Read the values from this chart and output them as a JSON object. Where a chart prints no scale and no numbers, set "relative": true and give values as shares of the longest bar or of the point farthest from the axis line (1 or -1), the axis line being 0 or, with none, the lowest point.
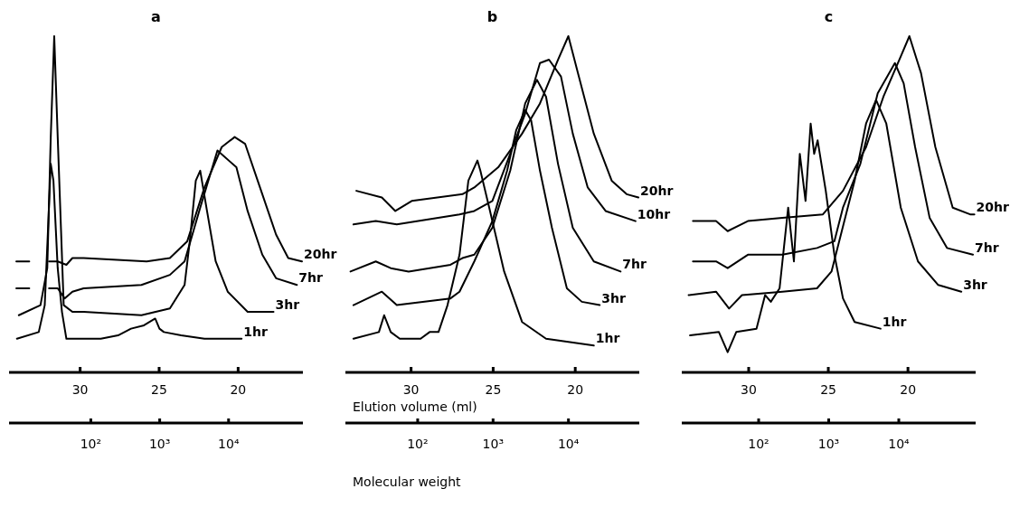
{
  "chart_data": [
    {
      "type": "line",
      "title": "a",
      "relative": true,
      "xlim": [
        34.5,
        15.9
      ],
      "xticks": [
        30,
        25,
        20
      ],
      "x2lim": [
        6.5,
        120000
      ],
      "x2ticks": [
        {
          "value": 100,
          "label": "10²"
        },
        {
          "value": 1000,
          "label": "10³"
        },
        {
          "value": 10000,
          "label": "10⁴"
        }
      ],
      "log": "x2",
      "series": [
        {
          "name": "20hr",
          "color": "#000000",
          "x": [
            34.04,
            33.22,
            32.5,
            31.97,
            31.42,
            30.87,
            30.49,
            29.78,
            25.79,
            24.32,
            23.22,
            22.13,
            21.04,
            20.22,
            19.56,
            18.47,
            17.6,
            16.83,
            15.96
          ],
          "values": [
            0.33,
            0.33,
            null,
            0.33,
            0.33,
            0.32,
            0.34,
            0.34,
            0.33,
            0.34,
            0.39,
            0.55,
            0.67,
            0.7,
            0.68,
            0.53,
            0.41,
            0.34,
            0.33
          ]
        },
        {
          "name": "7hr",
          "color": "#000000",
          "x": [
            34.04,
            33.22,
            32.5,
            31.97,
            31.42,
            30.98,
            30.49,
            29.78,
            26.12,
            24.32,
            23.39,
            22.4,
            21.31,
            20.11,
            19.4,
            18.47,
            17.6,
            16.28
          ],
          "values": [
            0.25,
            0.25,
            null,
            0.25,
            0.25,
            0.22,
            0.24,
            0.25,
            0.26,
            0.29,
            0.33,
            0.49,
            0.66,
            0.61,
            0.48,
            0.35,
            0.28,
            0.26
          ]
        },
        {
          "name": "3hr",
          "color": "#000000",
          "x": [
            33.88,
            32.51,
            32.08,
            31.86,
            31.64,
            31.42,
            31.04,
            30.49,
            29.78,
            26.12,
            24.32,
            23.39,
            23.06,
            22.68,
            22.4,
            21.97,
            21.42,
            20.66,
            19.4,
            17.76
          ],
          "values": [
            0.17,
            0.2,
            0.31,
            0.7,
            1.0,
            0.7,
            0.2,
            0.18,
            0.18,
            0.17,
            0.19,
            0.26,
            0.39,
            0.57,
            0.6,
            0.48,
            0.33,
            0.24,
            0.18,
            0.18
          ]
        },
        {
          "name": "1hr",
          "color": "#000000",
          "x": [
            34.0,
            32.62,
            32.24,
            32.02,
            31.86,
            31.69,
            31.42,
            31.15,
            30.87,
            29.78,
            28.69,
            27.6,
            26.78,
            25.96,
            25.25,
            24.98,
            24.7,
            23.61,
            22.13,
            19.78
          ],
          "values": [
            0.1,
            0.12,
            0.2,
            0.44,
            0.62,
            0.57,
            0.31,
            0.18,
            0.1,
            0.1,
            0.1,
            0.11,
            0.13,
            0.14,
            0.16,
            0.13,
            0.12,
            0.11,
            0.1,
            0.1
          ]
        }
      ]
    },
    {
      "type": "line",
      "title": "b",
      "xlabel": "Elution volume  (ml)",
      "x2label": "Molecular weight",
      "relative": true,
      "xlim": [
        34.0,
        16.1
      ],
      "xticks": [
        30,
        25,
        20
      ],
      "x2lim": [
        11,
        87000
      ],
      "x2ticks": [
        {
          "value": 100,
          "label": "10²"
        },
        {
          "value": 1000,
          "label": "10³"
        },
        {
          "value": 10000,
          "label": "10⁴"
        }
      ],
      "log": "x2",
      "series": [
        {
          "name": "20hr",
          "color": "#000000",
          "x": [
            33.33,
            31.78,
            30.96,
            29.96,
            26.87,
            26.15,
            24.69,
            23.24,
            22.15,
            21.05,
            20.42,
            19.78,
            18.87,
            17.78,
            16.87,
            16.15
          ],
          "values": [
            0.54,
            0.52,
            0.48,
            0.51,
            0.53,
            0.55,
            0.61,
            0.71,
            0.8,
            0.93,
            1.0,
            0.88,
            0.71,
            0.57,
            0.53,
            0.52
          ]
        },
        {
          "name": "10hr",
          "color": "#000000",
          "x": [
            33.51,
            32.15,
            30.87,
            27.05,
            26.15,
            25.05,
            23.96,
            23.05,
            22.15,
            21.6,
            20.87,
            20.15,
            19.24,
            18.15,
            16.33
          ],
          "values": [
            0.44,
            0.45,
            0.44,
            0.47,
            0.48,
            0.51,
            0.65,
            0.77,
            0.92,
            0.93,
            0.88,
            0.71,
            0.55,
            0.48,
            0.45
          ]
        },
        {
          "name": "7hr",
          "color": "#000000",
          "x": [
            33.69,
            32.15,
            31.24,
            30.15,
            27.6,
            26.87,
            26.15,
            25.05,
            23.96,
            23.05,
            22.33,
            21.78,
            21.05,
            20.15,
            18.87,
            17.24
          ],
          "values": [
            0.3,
            0.33,
            0.31,
            0.3,
            0.32,
            0.34,
            0.35,
            0.43,
            0.6,
            0.8,
            0.87,
            0.82,
            0.62,
            0.43,
            0.33,
            0.3
          ]
        },
        {
          "name": "3hr",
          "color": "#000000",
          "x": [
            33.51,
            31.78,
            30.87,
            27.6,
            27.05,
            26.15,
            25.05,
            24.15,
            23.6,
            23.05,
            22.69,
            22.15,
            21.42,
            20.51,
            19.6,
            18.51
          ],
          "values": [
            0.2,
            0.24,
            0.2,
            0.22,
            0.24,
            0.33,
            0.45,
            0.6,
            0.72,
            0.78,
            0.75,
            0.6,
            0.43,
            0.25,
            0.21,
            0.2
          ]
        },
        {
          "name": "1hr",
          "color": "#000000",
          "x": [
            33.51,
            31.96,
            31.64,
            31.24,
            30.69,
            29.42,
            28.87,
            28.33,
            27.78,
            27.05,
            26.51,
            25.96,
            25.78,
            25.24,
            24.33,
            23.24,
            21.78,
            18.87
          ],
          "values": [
            0.1,
            0.12,
            0.17,
            0.12,
            0.1,
            0.1,
            0.12,
            0.12,
            0.2,
            0.35,
            0.57,
            0.63,
            0.6,
            0.49,
            0.3,
            0.15,
            0.1,
            0.08
          ]
        }
      ]
    },
    {
      "type": "line",
      "title": "c",
      "relative": true,
      "xlim": [
        34.2,
        15.75
      ],
      "xticks": [
        30,
        25,
        20
      ],
      "x2lim": [
        8,
        125000
      ],
      "x2ticks": [
        {
          "value": 100,
          "label": "10²"
        },
        {
          "value": 1000,
          "label": "10³"
        },
        {
          "value": 10000,
          "label": "10⁴"
        }
      ],
      "log": "x2",
      "series": [
        {
          "name": "20hr",
          "color": "#000000",
          "x": [
            33.5,
            32.05,
            31.32,
            30.05,
            27.88,
            25.34,
            24.08,
            22.63,
            21.54,
            20.45,
            19.91,
            19.18,
            18.28,
            17.19,
            16.1,
            15.83
          ],
          "values": [
            0.45,
            0.45,
            0.42,
            0.45,
            0.46,
            0.47,
            0.54,
            0.67,
            0.82,
            0.94,
            1.0,
            0.89,
            0.67,
            0.49,
            0.47,
            0.47
          ]
        },
        {
          "name": "7hr",
          "color": "#000000",
          "x": [
            33.5,
            32.05,
            31.32,
            30.05,
            27.88,
            25.71,
            24.62,
            24.08,
            22.99,
            21.9,
            20.82,
            20.27,
            19.55,
            18.64,
            17.55,
            15.92
          ],
          "values": [
            0.33,
            0.33,
            0.31,
            0.35,
            0.35,
            0.37,
            0.39,
            0.49,
            0.62,
            0.83,
            0.92,
            0.86,
            0.67,
            0.46,
            0.37,
            0.35
          ]
        },
        {
          "name": "3hr",
          "color": "#000000",
          "x": [
            33.77,
            32.05,
            31.23,
            30.42,
            27.88,
            25.71,
            24.8,
            23.35,
            22.63,
            22.0,
            21.36,
            20.45,
            19.37,
            18.1,
            16.65
          ],
          "values": [
            0.23,
            0.24,
            0.19,
            0.23,
            0.24,
            0.25,
            0.3,
            0.57,
            0.74,
            0.81,
            0.74,
            0.49,
            0.33,
            0.26,
            0.24
          ]
        },
        {
          "name": "1hr",
          "color": "#000000",
          "x": [
            33.68,
            31.87,
            31.32,
            30.78,
            29.51,
            28.97,
            28.61,
            28.06,
            27.52,
            27.16,
            26.79,
            26.43,
            26.11,
            25.89,
            25.67,
            25.16,
            24.62,
            24.08,
            23.35,
            21.72
          ],
          "values": [
            0.11,
            0.12,
            0.06,
            0.12,
            0.13,
            0.23,
            0.21,
            0.25,
            0.49,
            0.33,
            0.65,
            0.51,
            0.74,
            0.65,
            0.69,
            0.54,
            0.35,
            0.22,
            0.15,
            0.13
          ]
        }
      ]
    }
  ]
}
